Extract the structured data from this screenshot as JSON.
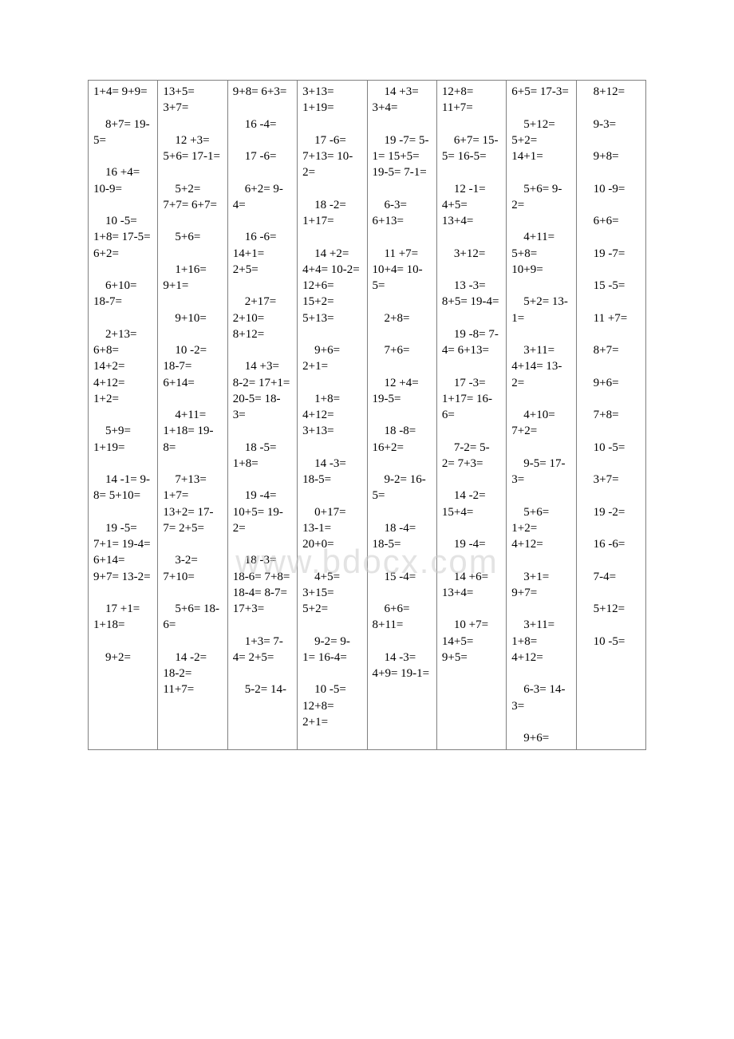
{
  "columns": [
    "1+4= 9+9=\n\n    8+7= 19-5=\n\n    16 +4= 10-9=\n\n    10 -5= 1+8= 17-5= 6+2=\n\n    6+10= 18-7=\n\n    2+13= 6+8= 14+2= 4+12= 1+2=\n\n    5+9= 1+19=\n\n    14 -1= 9-8= 5+10=\n\n    19 -5= 7+1= 19-4= 6+14= 9+7= 13-2=\n\n    17 +1= 1+18=\n\n    9+2=",
    "13+5= 3+7=\n\n    12 +3= 5+6= 17-1=\n\n    5+2= 7+7= 6+7=\n\n    5+6=\n\n    1+16= 9+1=\n\n    9+10=\n\n    10 -2= 18-7= 6+14=\n\n    4+11= 1+18= 19-8=\n\n    7+13= 1+7= 13+2= 17-7= 2+5=\n\n    3-2= 7+10=\n\n    5+6= 18-6=\n\n    14 -2= 18-2= 11+7=",
    "9+8= 6+3=\n\n    16 -4=\n\n    17 -6=\n\n    6+2= 9-4=\n\n    16 -6= 14+1= 2+5=\n\n    2+17= 2+10= 8+12=\n\n    14 +3= 8-2= 17+1= 20-5= 18-3=\n\n    18 -5= 1+8=\n\n    19 -4= 10+5= 19-2=\n\n    18 -3= 18-6= 7+8= 18-4= 8-7= 17+3=\n\n    1+3= 7-4= 2+5=\n\n    5-2= 14-",
    "3+13= 1+19=\n\n    17 -6= 7+13= 10-2=\n\n    18 -2= 1+17=\n\n    14 +2= 4+4= 10-2= 12+6= 15+2= 5+13=\n\n    9+6= 2+1=\n\n    1+8= 4+12= 3+13=\n\n    14 -3= 18-5=\n\n    0+17= 13-1= 20+0=\n\n    4+5= 3+15= 5+2=\n\n    9-2= 9-1= 16-4=\n\n    10 -5= 12+8= 2+1=",
    "    14 +3= 3+4=\n\n    19 -7= 5-1= 15+5= 19-5= 7-1=\n\n    6-3= 6+13=\n\n    11 +7= 10+4= 10-5=\n\n    2+8=\n\n    7+6=\n\n    12 +4= 19-5=\n\n    18 -8= 16+2=\n\n    9-2= 16-5=\n\n    18 -4= 18-5=\n\n    15 -4=\n\n    6+6= 8+11=\n\n    14 -3= 4+9= 19-1=",
    "12+8= 11+7=\n\n    6+7= 15-5= 16-5=\n\n    12 -1= 4+5= 13+4=\n\n    3+12=\n\n    13 -3= 8+5= 19-4=\n\n    19 -8= 7-4= 6+13=\n\n    17 -3= 1+17= 16-6=\n\n    7-2= 5-2= 7+3=\n\n    14 -2= 15+4=\n\n    19 -4=\n\n    14 +6= 13+4=\n\n    10 +7= 14+5= 9+5=",
    "6+5= 17-3=\n\n    5+12= 5+2= 14+1=\n\n    5+6= 9-2=\n\n    4+11= 5+8= 10+9=\n\n    5+2= 13-1=\n\n    3+11= 4+14= 13-2=\n\n    4+10= 7+2=\n\n    9-5= 17-3=\n\n    5+6= 1+2= 4+12=\n\n    3+1= 9+7=\n\n    3+11= 1+8= 4+12=\n\n    6-3= 14-3=\n\n    9+6=",
    "    8+12=\n\n    9-3=\n\n    9+8=\n\n    10 -9=\n\n    6+6=\n\n    19 -7=\n\n    15 -5=\n\n    11 +7=\n\n    8+7=\n\n    9+6=\n\n    7+8=\n\n    10 -5=\n\n    3+7=\n\n    19 -2=\n\n    16 -6=\n\n    7-4=\n\n    5+12=\n\n    10 -5="
  ],
  "watermark": "www.bdocx.com",
  "colors": {
    "border": "#808080",
    "text": "#000000",
    "background": "#ffffff",
    "watermark": "rgba(200,200,200,0.5)"
  },
  "fontsize": 15,
  "font_family": "Times New Roman"
}
